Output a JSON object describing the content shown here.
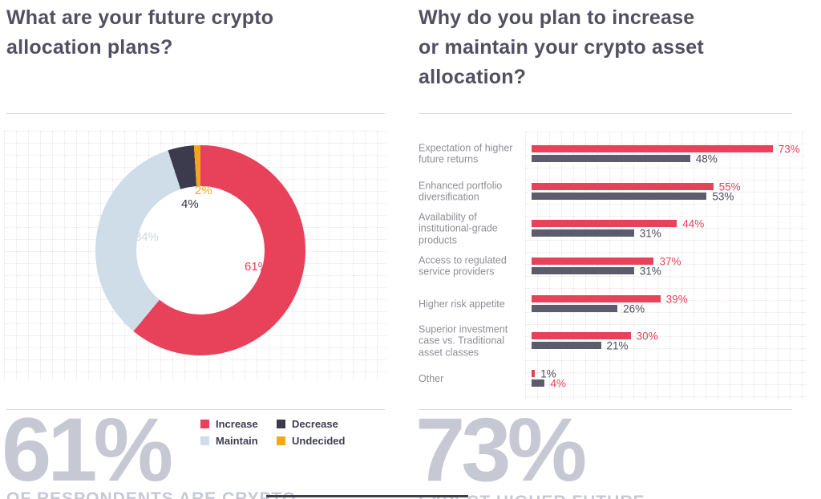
{
  "left_panel": {
    "title_lines": [
      "What are your future crypto",
      "allocation plans?"
    ],
    "big_stat": {
      "value": "61%",
      "caption": "OF RESPONDENTS ARE CRYPTO"
    },
    "legend": [
      {
        "label": "Increase",
        "color": "#e8415a"
      },
      {
        "label": "Decrease",
        "color": "#3b3b4d"
      },
      {
        "label": "Maintain",
        "color": "#cedde8"
      },
      {
        "label": "Undecided",
        "color": "#f2a71e"
      }
    ]
  },
  "right_panel": {
    "title_lines": [
      "Why do you plan to increase",
      "or maintain your crypto asset",
      "allocation?"
    ],
    "big_stat": {
      "value": "73%",
      "caption": "EXPECT HIGHER FUTURE"
    }
  },
  "chart_data": [
    {
      "type": "pie",
      "subtype": "donut",
      "title": "What are your future crypto allocation plans?",
      "value_suffix": "%",
      "start_angle_deg": 0,
      "direction": "clockwise",
      "slices": [
        {
          "label": "Increase",
          "value": 61,
          "color": "#e8415a",
          "label_color": "#e8415a"
        },
        {
          "label": "Maintain",
          "value": 34,
          "color": "#cedde8",
          "label_color": "#cdd9e3"
        },
        {
          "label": "Decrease",
          "value": 4,
          "color": "#3b3b4d",
          "label_color": "#32323f"
        },
        {
          "label": "Undecided",
          "value": 2,
          "color": "#f2a71e",
          "label_color": "#edaa33"
        }
      ]
    },
    {
      "type": "bar",
      "orientation": "horizontal",
      "title": "Why do you plan to increase or maintain your crypto asset allocation?",
      "value_suffix": "%",
      "xlim": [
        0,
        100
      ],
      "grid": "dotted-plus-pattern",
      "categories": [
        "Expectation of higher future returns",
        "Enhanced portfolio diversification",
        "Availability of institutional-grade products",
        "Access to regulated service providers",
        "Higher risk appetite",
        "Superior investment case vs. Traditional asset classes",
        "Other"
      ],
      "series": [
        {
          "name": "red",
          "color": "#e8415a",
          "values": [
            73,
            55,
            44,
            37,
            39,
            30,
            1
          ]
        },
        {
          "name": "dark-gray",
          "color": "#5d5c6c",
          "values": [
            48,
            53,
            31,
            31,
            26,
            21,
            4
          ]
        }
      ],
      "value_label_colors": {
        "red": "#e8415a",
        "dark-gray": "#4b4b5c"
      },
      "value_label_overrides": {
        "6": {
          "red": "#4b4b5c",
          "dark-gray": "#e8415a"
        }
      }
    }
  ]
}
